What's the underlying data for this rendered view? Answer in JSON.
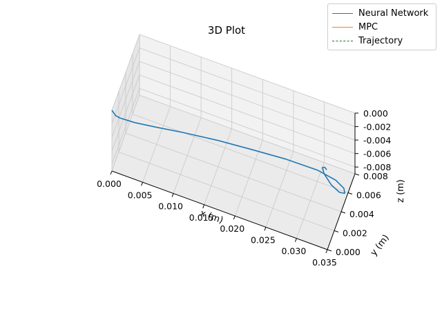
{
  "chart_data": {
    "type": "line3d",
    "title": "3D Plot",
    "xlabel": "x (m)",
    "ylabel": "y (m)",
    "zlabel": "z (m)",
    "xlim": [
      0.0,
      0.035
    ],
    "ylim": [
      0.0,
      0.008
    ],
    "zlim": [
      -0.009,
      0.0
    ],
    "x_ticks": [
      "0.000",
      "0.005",
      "0.010",
      "0.015",
      "0.020",
      "0.025",
      "0.030",
      "0.035"
    ],
    "y_ticks": [
      "0.000",
      "0.002",
      "0.004",
      "0.006",
      "0.008"
    ],
    "z_ticks": [
      "0.000",
      "-0.002",
      "-0.004",
      "-0.006",
      "-0.008"
    ],
    "grid": true,
    "legend_position": "top-right",
    "series": [
      {
        "name": "Neural Network",
        "color": "#1f77b4",
        "style": "solid",
        "points": [
          [
            0.0,
            0.0,
            0.0
          ],
          [
            0.0005,
            0.0002,
            -0.0009
          ],
          [
            0.001,
            0.0005,
            -0.0015
          ],
          [
            0.003,
            0.0012,
            -0.0025
          ],
          [
            0.006,
            0.002,
            -0.0033
          ],
          [
            0.01,
            0.003,
            -0.0042
          ],
          [
            0.015,
            0.004,
            -0.0051
          ],
          [
            0.02,
            0.0048,
            -0.0059
          ],
          [
            0.025,
            0.0055,
            -0.0066
          ],
          [
            0.03,
            0.006,
            -0.0073
          ],
          [
            0.033,
            0.006,
            -0.0078
          ],
          [
            0.0345,
            0.0057,
            -0.0081
          ],
          [
            0.0348,
            0.0054,
            -0.0083
          ],
          [
            0.034,
            0.0053,
            -0.0083
          ],
          [
            0.0325,
            0.0056,
            -0.0081
          ],
          [
            0.031,
            0.0062,
            -0.0078
          ],
          [
            0.0305,
            0.0066,
            -0.0076
          ],
          [
            0.0308,
            0.0067,
            -0.0076
          ],
          [
            0.0312,
            0.0066,
            -0.0077
          ]
        ]
      },
      {
        "name": "MPC",
        "color": "#ff7f0e",
        "style": "solid",
        "points": []
      },
      {
        "name": "Trajectory",
        "color": "#008000",
        "style": "dashed",
        "points": []
      }
    ]
  }
}
